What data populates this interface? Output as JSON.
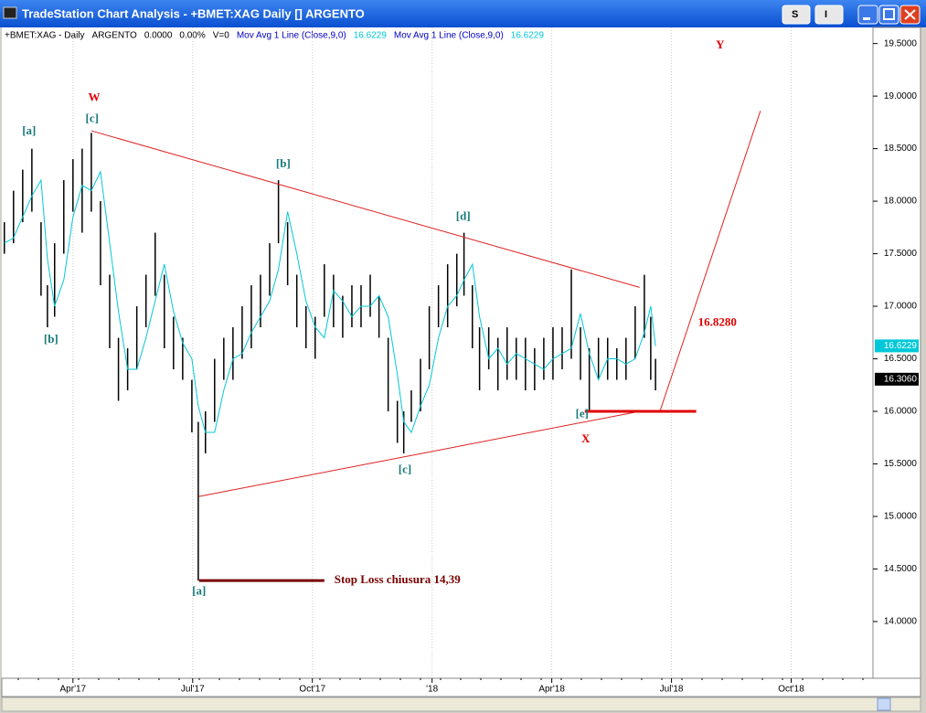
{
  "window": {
    "title": "TradeStation Chart Analysis - +BMET:XAG Daily [] ARGENTO",
    "buttons": [
      "S",
      "I"
    ]
  },
  "chart_data": {
    "type": "ohlc",
    "info": [
      "+BMET:XAG - Daily",
      "ARGENTO",
      "0.0000",
      "0.00%",
      "V=0"
    ],
    "xlim": [
      1.24,
      23.05
    ],
    "ylim": [
      13.46,
      19.61
    ],
    "xticks": [
      {
        "value": 3,
        "label": "Apr'17"
      },
      {
        "value": 6,
        "label": "Jul'17"
      },
      {
        "value": 9,
        "label": "Oct'17"
      },
      {
        "value": 12,
        "label": "'18"
      },
      {
        "value": 15,
        "label": "Apr'18"
      },
      {
        "value": 18,
        "label": "Jul'18"
      },
      {
        "value": 21,
        "label": "Oct'18"
      }
    ],
    "yticks": [
      {
        "value": 14,
        "label": "14.0000"
      },
      {
        "value": 14.5,
        "label": "14.5000"
      },
      {
        "value": 15,
        "label": "15.0000"
      },
      {
        "value": 15.5,
        "label": "15.5000"
      },
      {
        "value": 16,
        "label": "16.0000"
      },
      {
        "value": 16.5,
        "label": "16.5000"
      },
      {
        "value": 17,
        "label": "17.0000"
      },
      {
        "value": 17.5,
        "label": "17.5000"
      },
      {
        "value": 18,
        "label": "18.0000"
      },
      {
        "value": 18.5,
        "label": "18.5000"
      },
      {
        "value": 19,
        "label": "19.0000"
      },
      {
        "value": 19.5,
        "label": "19.5000"
      }
    ],
    "bars": {
      "color": "#000000",
      "x": [
        1.28,
        1.51,
        1.74,
        1.97,
        2.2,
        2.36,
        2.54,
        2.77,
        3.0,
        3.23,
        3.46,
        3.69,
        3.92,
        4.14,
        4.37,
        4.6,
        4.83,
        5.06,
        5.29,
        5.52,
        5.75,
        5.98,
        6.14,
        6.32,
        6.55,
        6.78,
        7.01,
        7.24,
        7.47,
        7.7,
        7.93,
        8.15,
        8.38,
        8.61,
        8.84,
        9.07,
        9.3,
        9.53,
        9.76,
        9.99,
        10.22,
        10.45,
        10.67,
        10.9,
        11.13,
        11.29,
        11.48,
        11.71,
        11.93,
        12.16,
        12.39,
        12.62,
        12.8,
        13.01,
        13.19,
        13.42,
        13.65,
        13.88,
        14.11,
        14.34,
        14.57,
        14.8,
        15.03,
        15.26,
        15.49,
        15.72,
        15.94,
        16.17,
        16.4,
        16.63,
        16.86,
        17.09,
        17.32,
        17.48,
        17.6
      ],
      "high": [
        17.8,
        18.1,
        18.3,
        18.5,
        17.8,
        17.2,
        17.6,
        18.2,
        18.4,
        18.5,
        18.65,
        18.0,
        17.3,
        16.7,
        16.6,
        17.0,
        17.3,
        17.7,
        17.3,
        16.9,
        16.7,
        16.3,
        15.9,
        16.0,
        16.5,
        16.7,
        16.8,
        17.0,
        17.2,
        17.3,
        17.6,
        18.2,
        17.8,
        17.3,
        17.0,
        16.9,
        17.4,
        17.3,
        17.1,
        17.2,
        17.2,
        17.3,
        17.1,
        16.7,
        16.1,
        16.0,
        16.2,
        16.5,
        17.0,
        17.2,
        17.4,
        17.5,
        17.7,
        17.2,
        16.8,
        16.8,
        16.7,
        16.8,
        16.7,
        16.7,
        16.6,
        16.7,
        16.8,
        16.8,
        17.35,
        16.8,
        16.6,
        16.7,
        16.7,
        16.6,
        16.7,
        17.0,
        17.3,
        16.9,
        16.5
      ],
      "low": [
        17.5,
        17.6,
        17.8,
        17.9,
        17.1,
        16.8,
        16.9,
        17.5,
        17.9,
        17.7,
        17.9,
        17.2,
        16.6,
        16.1,
        16.2,
        16.4,
        16.8,
        17.1,
        16.6,
        16.4,
        16.3,
        15.8,
        14.39,
        15.6,
        15.9,
        16.3,
        16.3,
        16.5,
        16.6,
        16.8,
        17.1,
        17.6,
        17.2,
        16.8,
        16.6,
        16.5,
        16.9,
        16.8,
        16.7,
        16.8,
        16.8,
        16.9,
        16.7,
        16.0,
        15.7,
        15.6,
        15.9,
        16.0,
        16.4,
        16.8,
        16.8,
        17.0,
        17.1,
        16.6,
        16.2,
        16.4,
        16.2,
        16.3,
        16.3,
        16.2,
        16.2,
        16.3,
        16.3,
        16.4,
        16.5,
        16.3,
        16.0,
        16.3,
        16.3,
        16.3,
        16.3,
        16.5,
        16.7,
        16.3,
        16.2
      ]
    },
    "ma": {
      "name": "Mov Avg 1 Line (Close,9,0)",
      "color": "#00c8d8",
      "values": [
        17.6,
        17.65,
        17.85,
        18.05,
        18.2,
        17.45,
        17.0,
        17.25,
        17.85,
        18.15,
        18.1,
        18.28,
        17.6,
        16.95,
        16.4,
        16.4,
        16.7,
        17.05,
        17.4,
        16.95,
        16.65,
        16.5,
        16.05,
        15.8,
        15.8,
        16.2,
        16.5,
        16.55,
        16.75,
        16.9,
        17.05,
        17.35,
        17.9,
        17.5,
        17.05,
        16.8,
        16.7,
        17.15,
        17.05,
        16.9,
        17.0,
        17.0,
        17.1,
        16.9,
        16.35,
        15.9,
        15.8,
        16.05,
        16.25,
        16.7,
        17.0,
        17.1,
        17.25,
        17.4,
        16.9,
        16.5,
        16.6,
        16.45,
        16.55,
        16.5,
        16.45,
        16.4,
        16.5,
        16.55,
        16.6,
        16.93,
        16.55,
        16.3,
        16.5,
        16.5,
        16.45,
        16.5,
        16.75,
        17.0,
        16.62
      ]
    },
    "markers": [
      {
        "value": 16.6229,
        "color": "#00c8d8"
      },
      {
        "value": 16.306,
        "label": "16.3060",
        "color": "#000000"
      }
    ],
    "lines": [
      {
        "x": [
          3.46,
          17.2
        ],
        "y": [
          18.67,
          17.18
        ],
        "color": "#e02020"
      },
      {
        "x": [
          6.16,
          17.2
        ],
        "y": [
          15.19,
          16.0
        ],
        "color": "#e02020"
      },
      {
        "x": [
          17.71,
          20.23
        ],
        "y": [
          16.0,
          18.86
        ],
        "color": "#e02020"
      },
      {
        "x": [
          15.83,
          18.62
        ],
        "y": [
          16.0,
          16.0
        ],
        "color": "#e00000"
      },
      {
        "x": [
          6.16,
          9.3
        ],
        "y": [
          14.39,
          14.39
        ],
        "color": "#7a0000"
      }
    ],
    "annotations": [
      {
        "text": "W",
        "x": 3.53,
        "y": 18.98,
        "color": "#e00000"
      },
      {
        "text": "[c]",
        "x": 3.48,
        "y": 18.78,
        "color": "#1a7a7a"
      },
      {
        "text": "[a]",
        "x": 1.9,
        "y": 18.66,
        "color": "#1a7a7a"
      },
      {
        "text": "[b]",
        "x": 2.45,
        "y": 16.68,
        "color": "#1a7a7a"
      },
      {
        "text": "[b]",
        "x": 8.27,
        "y": 18.35,
        "color": "#1a7a7a"
      },
      {
        "text": "[a]",
        "x": 6.16,
        "y": 14.28,
        "color": "#1a7a7a"
      },
      {
        "text": "[c]",
        "x": 11.32,
        "y": 15.44,
        "color": "#1a7a7a"
      },
      {
        "text": "[d]",
        "x": 12.78,
        "y": 17.85,
        "color": "#1a7a7a"
      },
      {
        "text": "[e]",
        "x": 15.76,
        "y": 15.97,
        "color": "#1a7a7a"
      },
      {
        "text": "X",
        "x": 15.85,
        "y": 15.73,
        "color": "#e00000"
      },
      {
        "text": "Y",
        "x": 19.22,
        "y": 19.48,
        "color": "#e00000"
      },
      {
        "text": "16.8280",
        "x": 19.15,
        "y": 16.84,
        "color": "#e00000"
      },
      {
        "text": "Stop Loss chiusura 14,39",
        "x": 9.55,
        "y": 14.39,
        "color": "#7a0000",
        "anchor": "start"
      }
    ]
  }
}
